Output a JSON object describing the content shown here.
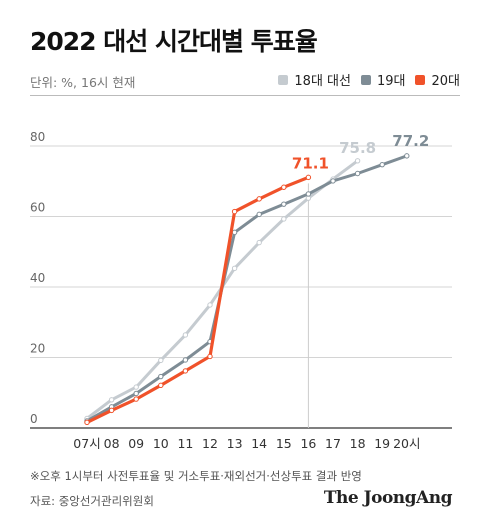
{
  "header": {
    "title": "2022 대선 시간대별 투표율",
    "unit_note": "단위: %, 16시 현재"
  },
  "footer": {
    "note": "※오후 1시부터 사전투표율 및 거소투표·재외선거·선상투표 결과 반영",
    "source": "자료: 중앙선거관리위원회",
    "brand": "The JoongAng"
  },
  "chart_data": {
    "type": "line",
    "title": "2022 대선 시간대별 투표율",
    "xlabel": "",
    "ylabel": "",
    "categories": [
      "07시",
      "08",
      "09",
      "10",
      "11",
      "12",
      "13",
      "14",
      "15",
      "16",
      "17",
      "18",
      "19",
      "20시"
    ],
    "ylim": [
      0,
      80
    ],
    "yticks": [
      0,
      20,
      40,
      60,
      80
    ],
    "grid": true,
    "legend_position": "top-right",
    "series": [
      {
        "name": "18대 대선",
        "color": "#c5cbd0",
        "values": [
          2.7,
          8.0,
          11.6,
          19.2,
          26.4,
          34.9,
          45.3,
          52.6,
          59.3,
          65.2,
          70.6,
          75.8,
          null,
          null
        ],
        "end_label": "75.8"
      },
      {
        "name": "19대",
        "color": "#7e8c95",
        "values": [
          2.0,
          6.0,
          9.8,
          14.6,
          19.3,
          24.5,
          55.5,
          60.6,
          63.5,
          66.4,
          70.1,
          72.2,
          74.7,
          77.2
        ],
        "end_label": "77.2"
      },
      {
        "name": "20대",
        "color": "#f0522a",
        "values": [
          1.6,
          5.0,
          8.2,
          12.1,
          16.2,
          20.3,
          61.4,
          65.0,
          68.3,
          71.1,
          null,
          null,
          null,
          null
        ],
        "end_label": "71.1"
      }
    ]
  }
}
